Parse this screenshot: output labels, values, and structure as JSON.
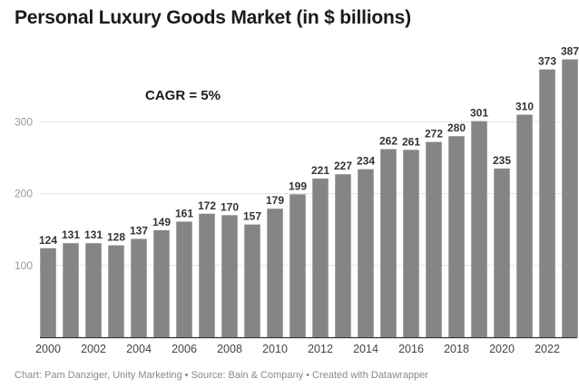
{
  "chart_data": {
    "type": "bar",
    "title": "Personal Luxury Goods Market (in $ billions)",
    "footer": "Chart: Pam Danziger, Unity Marketing • Source: Bain & Company • Created with Datawrapper",
    "annotation": "CAGR = 5%",
    "categories": [
      "2000",
      "2001",
      "2002",
      "2003",
      "2004",
      "2005",
      "2006",
      "2007",
      "2008",
      "2009",
      "2010",
      "2011",
      "2012",
      "2013",
      "2014",
      "2015",
      "2016",
      "2017",
      "2018",
      "2019",
      "2020",
      "2021",
      "2022",
      "2023"
    ],
    "values": [
      124,
      131,
      131,
      128,
      137,
      149,
      161,
      172,
      170,
      157,
      179,
      199,
      221,
      227,
      234,
      262,
      261,
      272,
      280,
      301,
      235,
      310,
      373,
      387
    ],
    "x_tick_labels": [
      "2000",
      "2002",
      "2004",
      "2006",
      "2008",
      "2010",
      "2012",
      "2014",
      "2016",
      "2018",
      "2020",
      "2022"
    ],
    "y_ticks": [
      100,
      200,
      300
    ],
    "ylim": [
      0,
      400
    ],
    "xlabel": "",
    "ylabel": "",
    "grid": true,
    "bar_color": "#858585"
  }
}
